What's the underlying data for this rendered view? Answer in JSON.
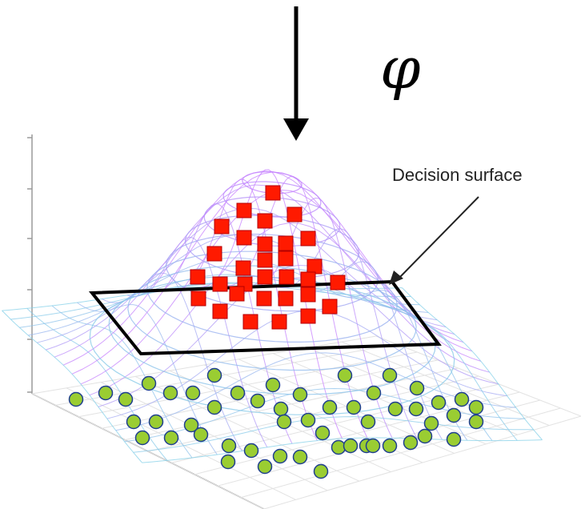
{
  "mapping_symbol": "φ",
  "annotation": {
    "label": "Decision surface"
  },
  "colors": {
    "class_a_fill": "#ff1a00",
    "class_a_stroke": "#b30000",
    "class_b_fill": "#9acd32",
    "class_b_stroke": "#1f3f8f",
    "surface_low": "#7fd6e6",
    "surface_high": "#c77dff",
    "plane_edge": "#000000",
    "axis": "#9a9a9a"
  },
  "legend_icons": {
    "class_a": "red-square-icon",
    "class_b": "green-circle-icon"
  }
}
